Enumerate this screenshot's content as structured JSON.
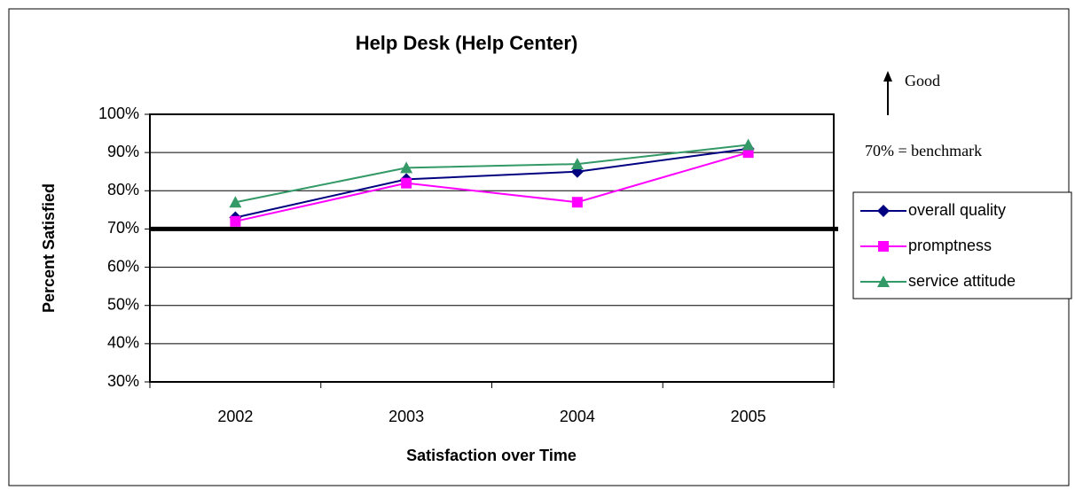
{
  "chart_data": {
    "type": "line",
    "title": "Help Desk (Help Center)",
    "xlabel": "Satisfaction over Time",
    "ylabel": "Percent Satisfied",
    "categories": [
      "2002",
      "2003",
      "2004",
      "2005"
    ],
    "series": [
      {
        "name": "overall quality",
        "color": "#000080",
        "marker": "diamond",
        "values": [
          73,
          83,
          85,
          91
        ]
      },
      {
        "name": "promptness",
        "color": "#ff00ff",
        "marker": "square",
        "values": [
          72,
          82,
          77,
          90
        ]
      },
      {
        "name": "service attitude",
        "color": "#339966",
        "marker": "triangle",
        "values": [
          77,
          86,
          87,
          92
        ]
      }
    ],
    "ylim": [
      30,
      100
    ],
    "yticks": [
      {
        "value": 30,
        "label": "30%"
      },
      {
        "value": 40,
        "label": "40%"
      },
      {
        "value": 50,
        "label": "50%"
      },
      {
        "value": 60,
        "label": "60%"
      },
      {
        "value": 70,
        "label": "70%"
      },
      {
        "value": 80,
        "label": "80%"
      },
      {
        "value": 90,
        "label": "90%"
      },
      {
        "value": 100,
        "label": "100%"
      }
    ],
    "grid": true,
    "legend": "right",
    "benchmark": 70,
    "annotations": [
      "Good",
      "70% = benchmark"
    ]
  }
}
